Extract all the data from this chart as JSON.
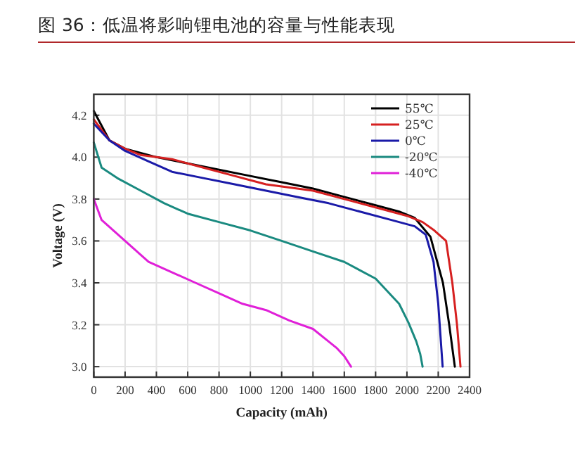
{
  "chart_data": {
    "type": "line",
    "title": "图 36：低温将影响锂电池的容量与性能表现",
    "xlabel": "Capacity (mAh)",
    "ylabel": "Voltage (V)",
    "xlim": [
      0,
      2400
    ],
    "ylim": [
      2.95,
      4.3
    ],
    "xticks": [
      0,
      200,
      400,
      600,
      800,
      1000,
      1200,
      1400,
      1600,
      1800,
      2000,
      2200,
      2400
    ],
    "yticks": [
      {
        "value": 3,
        "label": "3.0"
      },
      3.2,
      3.4,
      3.6,
      3.8,
      {
        "value": 4,
        "label": "4.0"
      },
      4.2
    ],
    "grid": true,
    "legend": "top right",
    "marker": "none",
    "line_style": "solid",
    "series": [
      {
        "name": "55℃",
        "color": "#000000",
        "x": [
          0,
          100,
          200,
          400,
          600,
          800,
          1000,
          1200,
          1400,
          1600,
          1800,
          1950,
          2050,
          2150,
          2230,
          2270,
          2306
        ],
        "values": [
          4.22,
          4.08,
          4.04,
          4.0,
          3.97,
          3.94,
          3.91,
          3.88,
          3.85,
          3.81,
          3.77,
          3.74,
          3.71,
          3.62,
          3.4,
          3.2,
          3.0
        ]
      },
      {
        "name": "25℃",
        "color": "#d62020",
        "x": [
          0,
          100,
          200,
          300,
          500,
          700,
          900,
          1100,
          1400,
          1600,
          1800,
          2000,
          2100,
          2175,
          2250,
          2290,
          2320,
          2342
        ],
        "values": [
          4.18,
          4.08,
          4.04,
          4.01,
          3.99,
          3.95,
          3.91,
          3.87,
          3.84,
          3.8,
          3.76,
          3.72,
          3.69,
          3.65,
          3.6,
          3.4,
          3.2,
          3.0
        ]
      },
      {
        "name": "0℃",
        "color": "#1a1aa8",
        "x": [
          0,
          100,
          200,
          350,
          500,
          700,
          900,
          1100,
          1300,
          1500,
          1700,
          1900,
          2050,
          2120,
          2170,
          2200,
          2228
        ],
        "values": [
          4.16,
          4.08,
          4.03,
          3.98,
          3.93,
          3.9,
          3.87,
          3.84,
          3.81,
          3.78,
          3.74,
          3.7,
          3.67,
          3.63,
          3.5,
          3.3,
          3.0
        ]
      },
      {
        "name": "-20℃",
        "color": "#1a8a80",
        "x": [
          0,
          50,
          150,
          300,
          450,
          600,
          800,
          1000,
          1200,
          1400,
          1600,
          1800,
          1950,
          2010,
          2060,
          2085,
          2100
        ],
        "values": [
          4.07,
          3.95,
          3.9,
          3.84,
          3.78,
          3.73,
          3.69,
          3.65,
          3.6,
          3.55,
          3.5,
          3.42,
          3.3,
          3.21,
          3.12,
          3.06,
          3.0
        ]
      },
      {
        "name": "-40℃",
        "color": "#e020d8",
        "x": [
          0,
          50,
          200,
          350,
          500,
          650,
          800,
          950,
          1100,
          1250,
          1400,
          1500,
          1550,
          1600,
          1643
        ],
        "values": [
          3.8,
          3.7,
          3.6,
          3.5,
          3.45,
          3.4,
          3.35,
          3.3,
          3.27,
          3.22,
          3.18,
          3.12,
          3.09,
          3.05,
          3.0
        ]
      }
    ]
  }
}
